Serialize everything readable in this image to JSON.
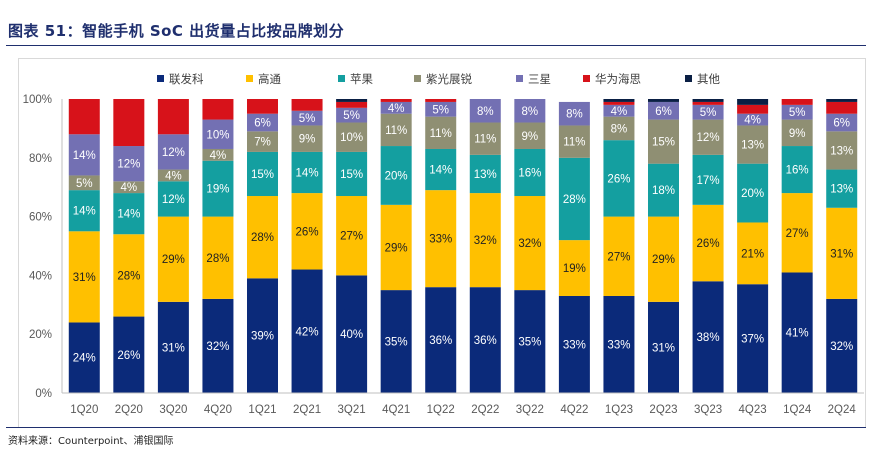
{
  "page": {
    "title": "图表 51：智能手机 SoC 出货量占比按品牌划分",
    "source": "资料来源：Counterpoint、浦银国际"
  },
  "chart_data": {
    "type": "bar",
    "stacked": true,
    "categories": [
      "1Q20",
      "2Q20",
      "3Q20",
      "4Q20",
      "1Q21",
      "2Q21",
      "3Q21",
      "4Q21",
      "1Q22",
      "2Q22",
      "3Q22",
      "4Q22",
      "1Q23",
      "2Q23",
      "3Q23",
      "4Q23",
      "1Q24",
      "2Q24"
    ],
    "series": [
      {
        "name": "联发科",
        "color": "#0b2a7a",
        "label_color": "#ffffff",
        "values": [
          24,
          26,
          31,
          32,
          39,
          42,
          40,
          35,
          36,
          36,
          35,
          33,
          33,
          31,
          38,
          37,
          41,
          32
        ]
      },
      {
        "name": "高通",
        "color": "#ffc000",
        "label_color": "#222222",
        "values": [
          31,
          28,
          29,
          28,
          28,
          26,
          27,
          29,
          33,
          32,
          32,
          19,
          27,
          29,
          26,
          21,
          27,
          31
        ]
      },
      {
        "name": "苹果",
        "color": "#149fa0",
        "label_color": "#ffffff",
        "values": [
          14,
          14,
          12,
          19,
          15,
          14,
          15,
          20,
          14,
          13,
          16,
          28,
          26,
          18,
          17,
          20,
          16,
          13
        ]
      },
      {
        "name": "紫光展锐",
        "color": "#8f8f73",
        "label_color": "#ffffff",
        "values": [
          5,
          4,
          4,
          4,
          7,
          9,
          10,
          11,
          11,
          11,
          9,
          11,
          8,
          15,
          12,
          13,
          9,
          13
        ]
      },
      {
        "name": "三星",
        "color": "#7370b3",
        "label_color": "#ffffff",
        "values": [
          14,
          12,
          12,
          10,
          6,
          5,
          5,
          4,
          5,
          8,
          8,
          8,
          4,
          6,
          5,
          4,
          5,
          6
        ]
      },
      {
        "name": "华为海思",
        "color": "#d7121a",
        "label_color": "#ffffff",
        "values": [
          12,
          16,
          12,
          7,
          5,
          4,
          2,
          1,
          1,
          0,
          0,
          0,
          1,
          0,
          1,
          3,
          2,
          4
        ]
      },
      {
        "name": "其他",
        "color": "#0a1f44",
        "label_color": "#ffffff",
        "values": [
          0,
          0,
          0,
          0,
          0,
          0,
          1,
          0,
          0,
          0,
          0,
          0,
          1,
          1,
          1,
          2,
          0,
          1
        ]
      }
    ],
    "labeled_series": [
      "联发科",
      "高通",
      "苹果",
      "紫光展锐",
      "三星"
    ],
    "label_suffix": "%",
    "ylim": [
      0,
      100
    ],
    "yticks": [
      "0%",
      "20%",
      "40%",
      "60%",
      "80%",
      "100%"
    ],
    "xlabel": "",
    "ylabel": "",
    "legend_position": "top",
    "grid": false
  }
}
